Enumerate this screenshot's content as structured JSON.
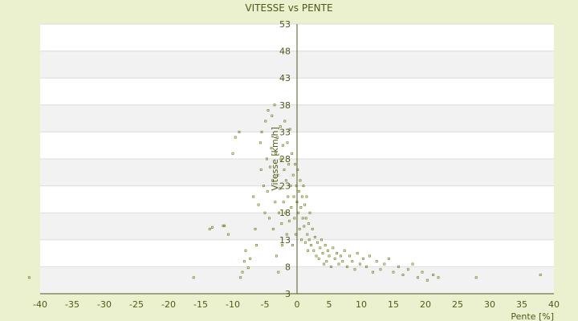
{
  "chart_data": {
    "type": "scatter",
    "title": "VITESSE vs PENTE",
    "xlabel": "Pente [%]",
    "ylabel": "Vitesse [km/h]",
    "xlim": [
      -40,
      40
    ],
    "ylim": [
      3,
      53
    ],
    "x_ticks": [
      -40,
      -35,
      -30,
      -25,
      -20,
      -15,
      -10,
      -5,
      0,
      5,
      10,
      15,
      20,
      25,
      30,
      35,
      40
    ],
    "y_ticks": [
      3,
      8,
      13,
      18,
      23,
      28,
      33,
      38,
      43,
      48,
      53
    ],
    "grid": true,
    "legend": "none",
    "colors": {
      "background": "#ebf1cf",
      "plot_light": "#ffffff",
      "plot_band": "#f2f2f2",
      "axis": "#4d5a1a",
      "marker": "#6f7f1e",
      "text": "#4d5a1a"
    },
    "series": [
      {
        "points": [
          [
            -41.7,
            6.0
          ],
          [
            -16.1,
            6.0
          ],
          [
            -13.6,
            15.0
          ],
          [
            -13.2,
            15.3
          ],
          [
            -11.5,
            15.6
          ],
          [
            -11.3,
            15.6
          ],
          [
            -10.7,
            14.0
          ],
          [
            -10.0,
            29.0
          ],
          [
            -9.6,
            32.0
          ],
          [
            -9.0,
            33.0
          ],
          [
            -8.8,
            6.0
          ],
          [
            -8.5,
            7.0
          ],
          [
            -8.2,
            9.0
          ],
          [
            -8.0,
            11.0
          ],
          [
            -7.6,
            7.8
          ],
          [
            -7.3,
            9.5
          ],
          [
            -6.8,
            21.0
          ],
          [
            -6.5,
            15.0
          ],
          [
            -6.3,
            12.0
          ],
          [
            -6.0,
            19.5
          ],
          [
            -5.7,
            31.0
          ],
          [
            -5.6,
            26.0
          ],
          [
            -5.5,
            33.0
          ],
          [
            -5.2,
            23.0
          ],
          [
            -5.0,
            18.0
          ],
          [
            -4.9,
            35.0
          ],
          [
            -4.7,
            28.0
          ],
          [
            -4.6,
            22.0
          ],
          [
            -4.5,
            37.0
          ],
          [
            -4.3,
            17.0
          ],
          [
            -4.2,
            26.5
          ],
          [
            -4.0,
            30.0
          ],
          [
            -3.9,
            36.0
          ],
          [
            -3.8,
            24.0
          ],
          [
            -3.7,
            15.0
          ],
          [
            -3.5,
            38.0
          ],
          [
            -3.4,
            20.0
          ],
          [
            -3.3,
            29.0
          ],
          [
            -3.2,
            10.0
          ],
          [
            -3.1,
            32.0
          ],
          [
            -3.0,
            25.0
          ],
          [
            -2.9,
            7.0
          ],
          [
            -2.8,
            18.0
          ],
          [
            -2.7,
            22.5
          ],
          [
            -2.6,
            34.0
          ],
          [
            -2.5,
            28.0
          ],
          [
            -2.4,
            16.0
          ],
          [
            -2.3,
            12.0
          ],
          [
            -2.2,
            30.5
          ],
          [
            -2.1,
            20.0
          ],
          [
            -2.0,
            26.0
          ],
          [
            -1.9,
            35.0
          ],
          [
            -1.8,
            18.0
          ],
          [
            -1.7,
            24.0
          ],
          [
            -1.6,
            14.0
          ],
          [
            -1.5,
            31.0
          ],
          [
            -1.4,
            21.0
          ],
          [
            -1.3,
            27.0
          ],
          [
            -1.2,
            16.5
          ],
          [
            -1.1,
            33.5
          ],
          [
            -1.0,
            23.0
          ],
          [
            -0.9,
            19.0
          ],
          [
            -0.8,
            29.0
          ],
          [
            -0.7,
            12.0
          ],
          [
            -0.6,
            25.0
          ],
          [
            -0.5,
            21.0
          ],
          [
            -0.4,
            17.0
          ],
          [
            -0.3,
            27.0
          ],
          [
            -0.2,
            14.0
          ],
          [
            -0.1,
            23.0
          ],
          [
            0.0,
            20.0
          ],
          [
            0.1,
            26.0
          ],
          [
            0.2,
            18.0
          ],
          [
            0.3,
            22.0
          ],
          [
            0.4,
            15.0
          ],
          [
            0.5,
            24.0
          ],
          [
            0.6,
            19.0
          ],
          [
            0.7,
            13.0
          ],
          [
            0.8,
            21.0
          ],
          [
            0.9,
            17.0
          ],
          [
            1.0,
            23.0
          ],
          [
            1.1,
            15.5
          ],
          [
            1.2,
            19.5
          ],
          [
            1.3,
            12.5
          ],
          [
            1.4,
            17.0
          ],
          [
            1.5,
            21.0
          ],
          [
            1.6,
            14.0
          ],
          [
            1.7,
            11.0
          ],
          [
            1.8,
            16.0
          ],
          [
            1.9,
            13.0
          ],
          [
            2.0,
            18.0
          ],
          [
            2.2,
            12.0
          ],
          [
            2.4,
            15.0
          ],
          [
            2.6,
            11.0
          ],
          [
            2.8,
            13.5
          ],
          [
            3.0,
            10.0
          ],
          [
            3.2,
            12.5
          ],
          [
            3.4,
            9.5
          ],
          [
            3.6,
            11.5
          ],
          [
            3.8,
            13.0
          ],
          [
            4.0,
            10.5
          ],
          [
            4.2,
            8.5
          ],
          [
            4.4,
            12.0
          ],
          [
            4.6,
            9.0
          ],
          [
            4.8,
            11.0
          ],
          [
            5.0,
            10.0
          ],
          [
            5.3,
            8.0
          ],
          [
            5.6,
            11.5
          ],
          [
            5.9,
            9.5
          ],
          [
            6.2,
            10.5
          ],
          [
            6.5,
            8.5
          ],
          [
            6.8,
            10.0
          ],
          [
            7.1,
            9.0
          ],
          [
            7.4,
            11.0
          ],
          [
            7.8,
            8.0
          ],
          [
            8.2,
            10.0
          ],
          [
            8.6,
            9.0
          ],
          [
            9.0,
            7.5
          ],
          [
            9.4,
            10.5
          ],
          [
            9.8,
            8.5
          ],
          [
            10.3,
            9.5
          ],
          [
            10.8,
            8.0
          ],
          [
            11.3,
            10.0
          ],
          [
            11.8,
            7.0
          ],
          [
            12.4,
            9.0
          ],
          [
            13.0,
            7.5
          ],
          [
            13.6,
            8.5
          ],
          [
            14.3,
            9.5
          ],
          [
            15.0,
            7.0
          ],
          [
            15.8,
            8.0
          ],
          [
            16.5,
            6.5
          ],
          [
            17.3,
            7.5
          ],
          [
            18.0,
            8.5
          ],
          [
            18.8,
            6.0
          ],
          [
            19.5,
            7.0
          ],
          [
            20.3,
            5.5
          ],
          [
            21.2,
            6.5
          ],
          [
            22.0,
            6.0
          ],
          [
            27.9,
            6.0
          ],
          [
            37.9,
            6.5
          ]
        ]
      }
    ]
  }
}
